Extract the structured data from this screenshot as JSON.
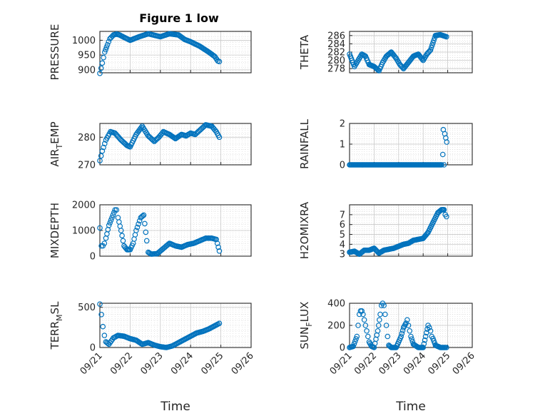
{
  "figure": {
    "title": "Figure 1 low"
  },
  "chart_data": [
    {
      "type": "scatter",
      "ylabel": "PRESSURE",
      "ylim": [
        890,
        1030
      ],
      "yticks": [
        900,
        950,
        1000
      ],
      "ytick_labels": [
        "900",
        "950",
        "1000"
      ],
      "x": [
        0.0,
        0.08,
        0.16,
        0.25,
        0.33,
        0.45,
        0.55,
        0.65,
        0.8,
        1.0,
        1.3,
        1.6,
        2.0,
        2.3,
        2.6,
        2.8,
        3.0,
        3.3,
        3.6,
        3.8,
        3.9,
        3.95
      ],
      "y": [
        888,
        923,
        960,
        985,
        1005,
        1018,
        1021,
        1018,
        1010,
        1000,
        1012,
        1022,
        1012,
        1022,
        1018,
        1003,
        995,
        980,
        960,
        945,
        930,
        928
      ]
    },
    {
      "type": "scatter",
      "ylabel": "THETA",
      "ylim": [
        277,
        287
      ],
      "yticks": [
        278,
        280,
        282,
        284,
        286
      ],
      "ytick_labels": [
        "278",
        "280",
        "282",
        "284",
        "286"
      ],
      "x": [
        0.0,
        0.1,
        0.2,
        0.35,
        0.5,
        0.65,
        0.8,
        1.0,
        1.2,
        1.35,
        1.5,
        1.7,
        1.9,
        2.05,
        2.2,
        2.4,
        2.6,
        2.8,
        3.0,
        3.15,
        3.3,
        3.5,
        3.7,
        3.9,
        3.95
      ],
      "y": [
        281.5,
        280,
        278.5,
        280,
        281.5,
        281,
        279,
        278.5,
        277.5,
        279.5,
        281,
        282,
        280.5,
        279,
        278,
        279.5,
        281,
        281.5,
        280,
        281.5,
        282.5,
        286,
        286.2,
        285.8,
        285.7
      ]
    },
    {
      "type": "scatter",
      "ylabel": "AIR",
      "ylabel_sub": "T",
      "ylabel_tail": "EMP",
      "ylim": [
        270,
        285
      ],
      "yticks": [
        270,
        280
      ],
      "ytick_labels": [
        "270",
        "280"
      ],
      "x": [
        0.0,
        0.08,
        0.2,
        0.35,
        0.5,
        0.7,
        0.9,
        1.0,
        1.2,
        1.4,
        1.6,
        1.8,
        1.95,
        2.1,
        2.3,
        2.5,
        2.7,
        2.85,
        3.0,
        3.15,
        3.3,
        3.5,
        3.7,
        3.85,
        3.95
      ],
      "y": [
        271.5,
        275,
        279,
        282,
        281.5,
        279,
        277,
        276.5,
        281,
        284,
        280.5,
        278.5,
        280,
        282,
        281,
        279.5,
        281,
        280.5,
        281.5,
        281,
        282.5,
        284.5,
        284,
        282,
        280
      ]
    },
    {
      "type": "scatter",
      "ylabel": "RAINFALL",
      "ylim": [
        0,
        2
      ],
      "yticks": [
        0,
        1,
        2
      ],
      "ytick_labels": [
        "0",
        "1",
        "2"
      ],
      "x": [
        0.0,
        0.5,
        1.0,
        1.5,
        2.0,
        2.5,
        3.0,
        3.5,
        3.75,
        3.8,
        3.82,
        3.85,
        3.88,
        3.92,
        3.96
      ],
      "y": [
        0,
        0,
        0,
        0,
        0,
        0,
        0,
        0,
        0,
        0.5,
        1.7,
        0,
        1.5,
        1.3,
        1.1
      ]
    },
    {
      "type": "scatter",
      "ylabel": "MIXDEPTH",
      "ylim": [
        0,
        2000
      ],
      "yticks": [
        0,
        1000,
        2000
      ],
      "ytick_labels": [
        "0",
        "1000",
        "2000"
      ],
      "x": [
        0.0,
        0.05,
        0.1,
        0.15,
        0.2,
        0.3,
        0.4,
        0.5,
        0.55,
        0.6,
        0.7,
        0.8,
        0.9,
        1.0,
        1.1,
        1.2,
        1.35,
        1.45,
        1.55,
        1.6,
        1.7,
        1.9,
        2.1,
        2.3,
        2.5,
        2.7,
        2.9,
        3.1,
        3.3,
        3.5,
        3.7,
        3.85,
        3.95
      ],
      "y": [
        1100,
        400,
        400,
        500,
        700,
        1200,
        1500,
        1800,
        1800,
        1500,
        1000,
        400,
        250,
        250,
        500,
        1000,
        1500,
        1600,
        600,
        150,
        80,
        100,
        300,
        500,
        400,
        350,
        450,
        500,
        600,
        700,
        700,
        650,
        200
      ]
    },
    {
      "type": "scatter",
      "ylabel": "H2OMIXRA",
      "ylim": [
        2.8,
        8
      ],
      "yticks": [
        3,
        4,
        5,
        6,
        7
      ],
      "ytick_labels": [
        "3",
        "4",
        "5",
        "6",
        "7"
      ],
      "x": [
        0.0,
        0.2,
        0.4,
        0.6,
        0.8,
        1.0,
        1.2,
        1.4,
        1.6,
        1.8,
        2.0,
        2.2,
        2.4,
        2.6,
        2.8,
        3.0,
        3.2,
        3.4,
        3.6,
        3.75,
        3.85,
        3.9,
        3.95
      ],
      "y": [
        3.2,
        3.3,
        3.0,
        3.4,
        3.4,
        3.6,
        3.1,
        3.4,
        3.5,
        3.6,
        3.8,
        4.0,
        4.1,
        4.4,
        4.5,
        4.6,
        5.2,
        6.2,
        7.2,
        7.5,
        7.5,
        7.0,
        6.8
      ]
    },
    {
      "type": "scatter",
      "ylabel": "TERR",
      "ylabel_sub": "M",
      "ylabel_tail": "SL",
      "ylim": [
        0,
        550
      ],
      "yticks": [
        0,
        500
      ],
      "ytick_labels": [
        "0",
        "500"
      ],
      "x": [
        0.0,
        0.05,
        0.1,
        0.15,
        0.2,
        0.3,
        0.45,
        0.6,
        0.8,
        1.0,
        1.2,
        1.4,
        1.6,
        1.8,
        2.0,
        2.2,
        2.4,
        2.6,
        2.8,
        3.0,
        3.2,
        3.4,
        3.6,
        3.8,
        3.9,
        3.95
      ],
      "y": [
        540,
        410,
        260,
        150,
        70,
        40,
        120,
        150,
        140,
        110,
        90,
        40,
        60,
        30,
        10,
        0,
        20,
        60,
        100,
        140,
        180,
        200,
        230,
        270,
        290,
        300
      ]
    },
    {
      "type": "scatter",
      "ylabel": "SUN",
      "ylabel_sub": "F",
      "ylabel_tail": "LUX",
      "ylim": [
        0,
        400
      ],
      "yticks": [
        0,
        200,
        400
      ],
      "ytick_labels": [
        "0",
        "200",
        "400"
      ],
      "x": [
        0.0,
        0.15,
        0.3,
        0.35,
        0.4,
        0.45,
        0.5,
        0.55,
        0.6,
        0.65,
        0.7,
        0.75,
        0.8,
        0.9,
        1.0,
        1.15,
        1.25,
        1.3,
        1.35,
        1.4,
        1.45,
        1.5,
        1.55,
        1.6,
        1.7,
        1.9,
        2.1,
        2.2,
        2.3,
        2.35,
        2.4,
        2.45,
        2.5,
        2.6,
        2.8,
        3.0,
        3.1,
        3.2,
        3.25,
        3.3,
        3.35,
        3.4,
        3.5,
        3.7,
        3.9,
        3.95
      ],
      "y": [
        0,
        10,
        100,
        200,
        300,
        330,
        330,
        300,
        250,
        200,
        150,
        100,
        50,
        10,
        0,
        150,
        300,
        380,
        400,
        380,
        300,
        200,
        100,
        20,
        0,
        0,
        100,
        180,
        220,
        250,
        200,
        150,
        100,
        30,
        0,
        0,
        100,
        200,
        180,
        150,
        100,
        80,
        20,
        0,
        0,
        0
      ]
    }
  ],
  "x_axis": {
    "tick_labels": [
      "09/21",
      "09/22",
      "09/23",
      "09/24",
      "09/25",
      "09/26"
    ],
    "label": "Time",
    "xlim": [
      0,
      5
    ]
  },
  "colors": {
    "marker": "#0072BD",
    "axis": "#262626",
    "grid": "#d4d4d4"
  }
}
